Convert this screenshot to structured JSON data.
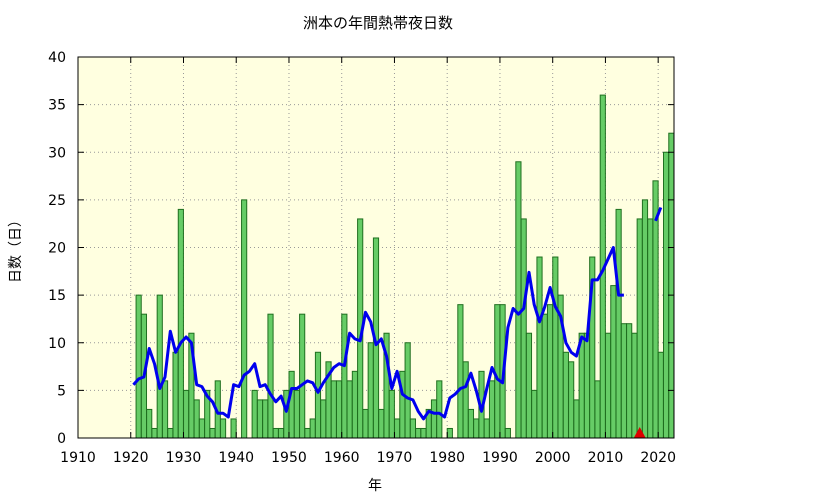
{
  "chart_data": {
    "type": "bar",
    "title": "洲本の年間熱帯夜日数",
    "xlabel": "年",
    "ylabel": "日数（日）",
    "xlim": [
      1910,
      2023
    ],
    "ylim": [
      0,
      40
    ],
    "xticks": [
      1910,
      1920,
      1930,
      1940,
      1950,
      1960,
      1970,
      1980,
      1990,
      2000,
      2010,
      2020
    ],
    "yticks": [
      0,
      5,
      10,
      15,
      20,
      25,
      30,
      35,
      40
    ],
    "grid": true,
    "colors": {
      "plot_background": "#ffffe0",
      "bar_fill": "#66cc66",
      "bar_edge": "#1f6f1f",
      "line": "#0000ee",
      "marker": "#dd0000",
      "grid": "#999999"
    },
    "bars": {
      "x": [
        1922,
        1923,
        1924,
        1925,
        1926,
        1927,
        1928,
        1929,
        1930,
        1931,
        1932,
        1933,
        1934,
        1935,
        1936,
        1937,
        1938,
        1939,
        1940,
        1941,
        1942,
        1943,
        1944,
        1945,
        1946,
        1947,
        1948,
        1949,
        1950,
        1951,
        1952,
        1953,
        1954,
        1955,
        1956,
        1957,
        1958,
        1959,
        1960,
        1961,
        1962,
        1963,
        1964,
        1965,
        1966,
        1967,
        1968,
        1969,
        1970,
        1971,
        1972,
        1973,
        1974,
        1975,
        1976,
        1977,
        1978,
        1979,
        1980,
        1981,
        1982,
        1983,
        1984,
        1985,
        1986,
        1987,
        1988,
        1989,
        1990,
        1991,
        1992,
        1993,
        1994,
        1995,
        1996,
        1997,
        1998,
        1999,
        2000,
        2001,
        2002,
        2003,
        2004,
        2005,
        2006,
        2007,
        2008,
        2009,
        2010,
        2011,
        2012,
        2013,
        2014,
        2015,
        2016,
        2017,
        2018,
        2019,
        2020,
        2021,
        2022,
        2023
      ],
      "values": [
        15,
        13,
        3,
        1,
        15,
        6,
        1,
        9,
        24,
        5,
        11,
        4,
        2,
        5,
        1,
        6,
        2,
        0,
        2,
        0,
        25,
        0,
        5,
        4,
        4,
        13,
        1,
        1,
        5,
        7,
        5,
        13,
        1,
        2,
        9,
        4,
        8,
        6,
        6,
        13,
        6,
        7,
        23,
        3,
        10,
        21,
        3,
        11,
        5,
        2,
        7,
        10,
        2,
        1,
        1,
        3,
        4,
        6,
        0,
        1,
        0,
        14,
        8,
        3,
        2,
        7,
        2,
        6,
        14,
        14,
        1,
        0,
        29,
        23,
        11,
        5,
        19,
        13,
        14,
        19,
        15,
        9,
        8,
        4,
        11,
        11,
        19,
        6,
        36,
        11,
        16,
        24,
        12,
        12,
        11,
        23,
        25,
        23,
        27,
        9,
        30,
        32
      ]
    },
    "moving_average_segments": [
      {
        "x": [
          1921,
          1922,
          1923,
          1924,
          1925,
          1926,
          1927,
          1928,
          1929,
          1930,
          1931,
          1932,
          1933,
          1934,
          1935,
          1936,
          1937,
          1938,
          1939,
          1940,
          1941,
          1942,
          1943,
          1944,
          1945,
          1946,
          1947,
          1948,
          1949,
          1950,
          1951,
          1952,
          1953,
          1954,
          1955,
          1956,
          1957,
          1958,
          1959,
          1960,
          1961,
          1962,
          1963,
          1964,
          1965,
          1966,
          1967,
          1968,
          1969,
          1970,
          1971,
          1972,
          1973,
          1974,
          1975,
          1976,
          1977,
          1978,
          1979,
          1980,
          1981,
          1982,
          1983,
          1984,
          1985,
          1986,
          1987,
          1988,
          1989,
          1990,
          1991,
          1992,
          1993,
          1994,
          1995,
          1996,
          1997,
          1998,
          1999,
          2000,
          2001,
          2002,
          2003,
          2004,
          2005,
          2006,
          2007,
          2008,
          2009,
          2010,
          2011,
          2012,
          2013,
          2014
        ],
        "y": [
          5.6,
          6.2,
          6.4,
          9.4,
          7.8,
          5.2,
          6.4,
          11.2,
          9.0,
          10.0,
          10.6,
          10.0,
          5.6,
          5.4,
          4.4,
          3.8,
          2.6,
          2.6,
          2.2,
          5.6,
          5.4,
          6.6,
          7.0,
          7.8,
          5.4,
          5.6,
          4.6,
          3.8,
          4.4,
          2.8,
          5.2,
          5.2,
          5.6,
          6.0,
          5.8,
          4.8,
          5.8,
          6.6,
          7.4,
          7.8,
          7.6,
          11.0,
          10.4,
          10.2,
          13.2,
          12.2,
          9.8,
          10.4,
          8.6,
          5.2,
          7.0,
          4.6,
          4.2,
          4.0,
          2.8,
          2.0,
          2.8,
          2.6,
          2.6,
          2.2,
          4.2,
          4.6,
          5.2,
          5.4,
          6.8,
          5.0,
          2.8,
          5.2,
          7.4,
          6.2,
          5.8,
          11.6,
          13.6,
          13.0,
          13.6,
          17.4,
          14.0,
          12.2,
          13.8,
          15.8,
          13.8,
          12.8,
          10.0,
          9.0,
          8.6,
          10.6,
          10.2,
          16.6,
          16.6,
          17.6,
          18.8,
          20.0,
          15.0,
          15.0
        ]
      },
      {
        "x": [
          2020,
          2021
        ],
        "y": [
          22.8,
          24.2
        ]
      }
    ],
    "markers": [
      {
        "x": 2016.5,
        "y": 0,
        "shape": "triangle"
      }
    ]
  }
}
